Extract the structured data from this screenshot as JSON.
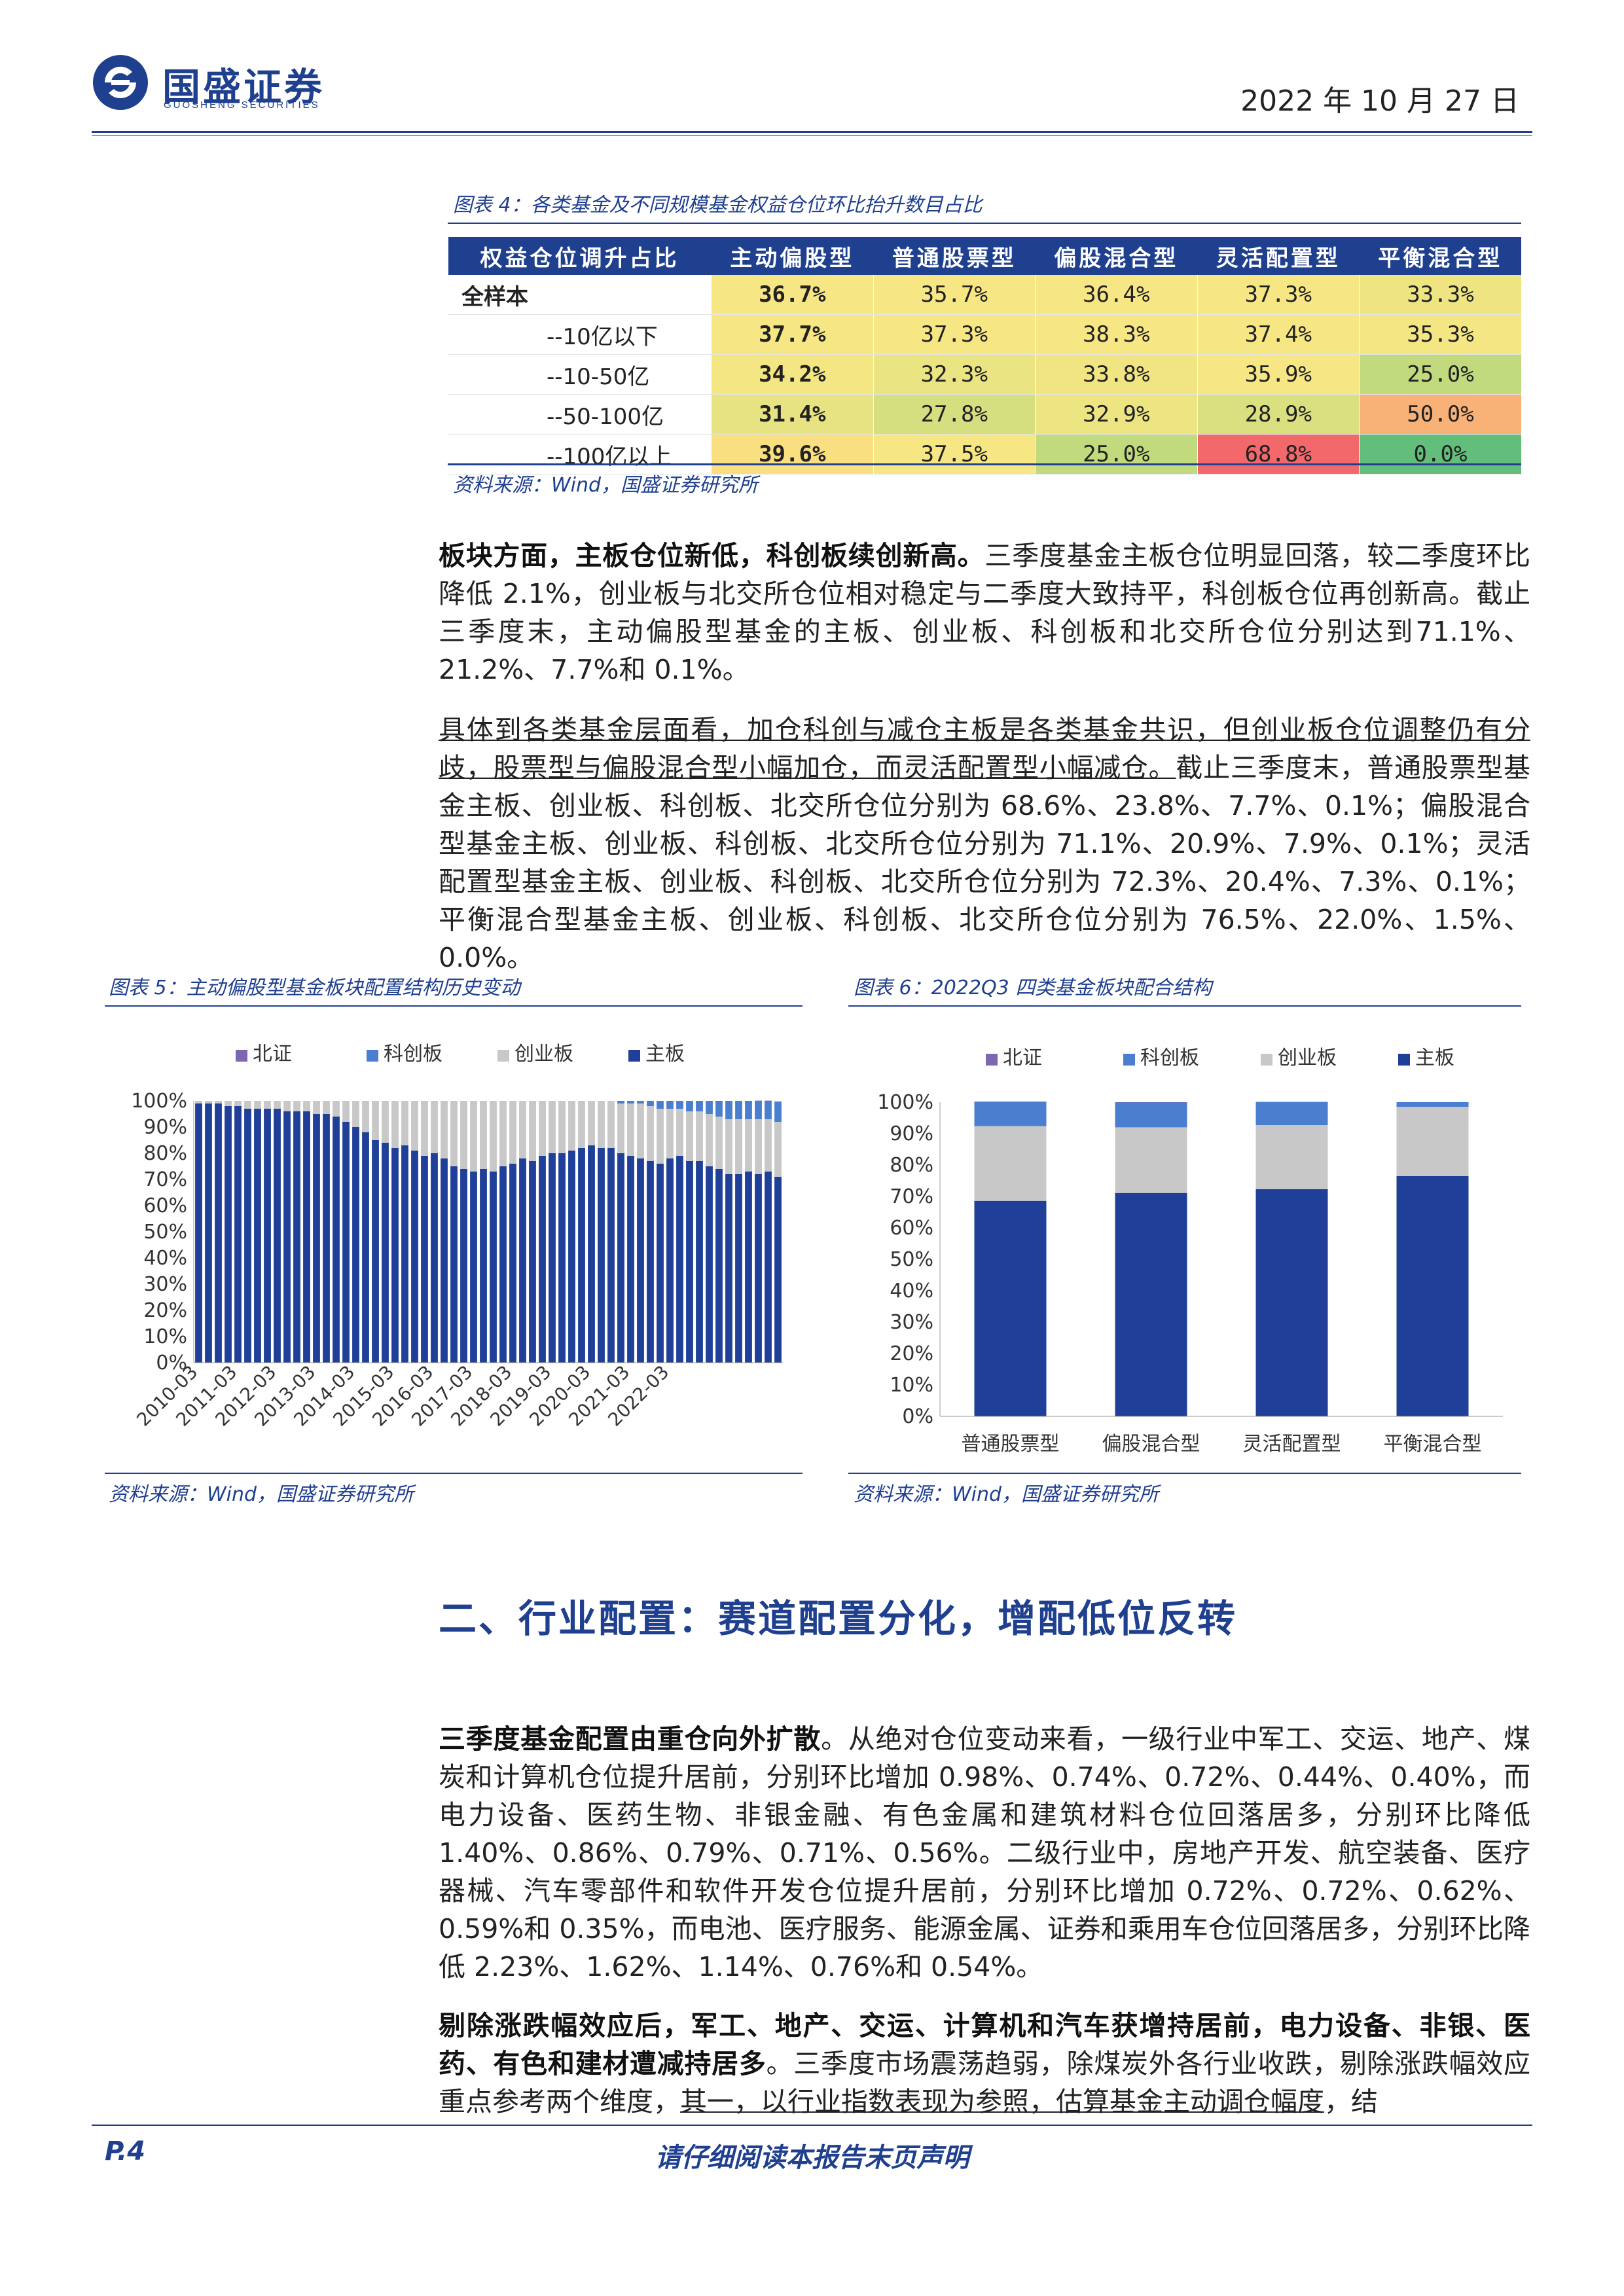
{
  "header": {
    "logo_cn": "国盛证券",
    "logo_en": "GUOSHENG SECURITIES",
    "date": "2022 年 10 月 27 日"
  },
  "table4": {
    "caption": "图表 4：各类基金及不同规模基金权益仓位环比抬升数目占比",
    "columns": [
      "权益仓位调升占比",
      "主动偏股型",
      "普通股票型",
      "偏股混合型",
      "灵活配置型",
      "平衡混合型"
    ],
    "rows": [
      {
        "label": "全样本",
        "cells": [
          "36.7%",
          "35.7%",
          "36.4%",
          "37.3%",
          "33.3%"
        ],
        "colors": [
          "#f7e784",
          "#f7e784",
          "#f7e784",
          "#f7e784",
          "#eee582"
        ]
      },
      {
        "label": "--10亿以下",
        "cells": [
          "37.7%",
          "37.3%",
          "38.3%",
          "37.4%",
          "35.3%"
        ],
        "colors": [
          "#f7e784",
          "#f7e784",
          "#f7e784",
          "#f7e784",
          "#f3e683"
        ]
      },
      {
        "label": "--10-50亿",
        "cells": [
          "34.2%",
          "32.3%",
          "33.8%",
          "35.9%",
          "25.0%"
        ],
        "colors": [
          "#f4e683",
          "#ebe482",
          "#f0e582",
          "#f7e784",
          "#c2da7e"
        ]
      },
      {
        "label": "--50-100亿",
        "cells": [
          "31.4%",
          "27.8%",
          "32.9%",
          "28.9%",
          "50.0%"
        ],
        "colors": [
          "#e8e382",
          "#d5df80",
          "#ede482",
          "#dae080",
          "#f8b176"
        ]
      },
      {
        "label": "--100亿以上",
        "cells": [
          "39.6%",
          "37.5%",
          "25.0%",
          "68.8%",
          "0.0%"
        ],
        "colors": [
          "#f9df80",
          "#f7e784",
          "#c2da7e",
          "#f3696b",
          "#63be7b"
        ]
      }
    ],
    "source": "资料来源：Wind，国盛证券研究所"
  },
  "para1": {
    "bold": "板块方面，主板仓位新低，科创板续创新高。",
    "text": "三季度基金主板仓位明显回落，较二季度环比降低 2.1%，创业板与北交所仓位相对稳定与二季度大致持平，科创板仓位再创新高。截止三季度末，主动偏股型基金的主板、创业板、科创板和北交所仓位分别达到71.1%、21.2%、7.7%和 0.1%。"
  },
  "para2": {
    "underlined": "具体到各类基金层面看，加仓科创与减仓主板是各类基金共识，但创业板仓位调整仍有分歧，股票型与偏股混合型小幅加仓，而灵活配置型小幅减仓。",
    "text": "截止三季度末，普通股票型基金主板、创业板、科创板、北交所仓位分别为 68.6%、23.8%、7.7%、0.1%；偏股混合型基金主板、创业板、科创板、北交所仓位分别为 71.1%、20.9%、7.9%、0.1%；灵活配置型基金主板、创业板、科创板、北交所仓位分别为 72.3%、20.4%、7.3%、0.1%；平衡混合型基金主板、创业板、科创板、北交所仓位分别为 76.5%、22.0%、1.5%、0.0%。"
  },
  "fig5": {
    "caption": "图表 5：主动偏股型基金板块配置结构历史变动",
    "source": "资料来源：Wind，国盛证券研究所"
  },
  "fig6": {
    "caption": "图表 6：2022Q3 四类基金板块配合结构",
    "source": "资料来源：Wind，国盛证券研究所"
  },
  "chart_data": [
    {
      "type": "bar",
      "stacked": true,
      "legend": [
        "北证",
        "科创板",
        "创业板",
        "主板"
      ],
      "legend_position": "top",
      "colors": {
        "北证": "#7b68b0",
        "科创板": "#4a7fd0",
        "创业板": "#c8c8c8",
        "主板": "#1f3f99"
      },
      "ylim": [
        0,
        100
      ],
      "yticks": [
        "0%",
        "10%",
        "20%",
        "30%",
        "40%",
        "50%",
        "60%",
        "70%",
        "80%",
        "90%",
        "100%"
      ],
      "xtick_labels": [
        "2010-03",
        "2011-03",
        "2012-03",
        "2013-03",
        "2014-03",
        "2015-03",
        "2016-03",
        "2017-03",
        "2018-03",
        "2019-03",
        "2020-03",
        "2021-03",
        "2022-03"
      ],
      "x_quarters_start": "2010-03",
      "series": [
        {
          "name": "主板",
          "values": [
            99,
            99,
            99,
            98,
            98,
            97,
            97,
            97,
            97,
            96,
            96,
            96,
            95,
            95,
            94,
            92,
            90,
            88,
            85,
            84,
            82,
            83,
            81,
            79,
            80,
            78,
            75,
            74,
            73,
            74,
            73,
            75,
            76,
            78,
            77,
            79,
            80,
            80,
            81,
            82,
            83,
            82,
            82,
            80,
            79,
            78,
            77,
            76,
            78,
            79,
            77,
            77,
            75,
            74,
            72,
            72,
            73,
            72,
            73,
            71
          ]
        },
        {
          "name": "创业板",
          "values": [
            1,
            1,
            1,
            2,
            2,
            3,
            3,
            3,
            3,
            4,
            4,
            4,
            5,
            5,
            6,
            8,
            10,
            12,
            15,
            16,
            18,
            17,
            19,
            21,
            20,
            22,
            25,
            26,
            27,
            26,
            27,
            25,
            24,
            22,
            23,
            21,
            20,
            20,
            19,
            18,
            17,
            18,
            18,
            19,
            20,
            21,
            21,
            21,
            19,
            18,
            19,
            19,
            20,
            20,
            21,
            21,
            20,
            21,
            20,
            21
          ]
        },
        {
          "name": "科创板",
          "values": [
            0,
            0,
            0,
            0,
            0,
            0,
            0,
            0,
            0,
            0,
            0,
            0,
            0,
            0,
            0,
            0,
            0,
            0,
            0,
            0,
            0,
            0,
            0,
            0,
            0,
            0,
            0,
            0,
            0,
            0,
            0,
            0,
            0,
            0,
            0,
            0,
            0,
            0,
            0,
            0,
            0,
            0,
            0,
            1,
            1,
            1,
            2,
            3,
            3,
            3,
            4,
            4,
            5,
            6,
            7,
            7,
            7,
            7,
            7,
            7.7
          ]
        },
        {
          "name": "北证",
          "values": [
            0,
            0,
            0,
            0,
            0,
            0,
            0,
            0,
            0,
            0,
            0,
            0,
            0,
            0,
            0,
            0,
            0,
            0,
            0,
            0,
            0,
            0,
            0,
            0,
            0,
            0,
            0,
            0,
            0,
            0,
            0,
            0,
            0,
            0,
            0,
            0,
            0,
            0,
            0,
            0,
            0,
            0,
            0,
            0,
            0,
            0,
            0,
            0,
            0,
            0,
            0,
            0,
            0,
            0,
            0,
            0,
            0,
            0.1,
            0.1,
            0.1
          ]
        }
      ]
    },
    {
      "type": "bar",
      "stacked": true,
      "legend": [
        "北证",
        "科创板",
        "创业板",
        "主板"
      ],
      "legend_position": "top",
      "colors": {
        "北证": "#7b68b0",
        "科创板": "#4a7fd0",
        "创业板": "#c8c8c8",
        "主板": "#1f3f99"
      },
      "ylim": [
        0,
        100
      ],
      "yticks": [
        "0%",
        "10%",
        "20%",
        "30%",
        "40%",
        "50%",
        "60%",
        "70%",
        "80%",
        "90%",
        "100%"
      ],
      "categories": [
        "普通股票型",
        "偏股混合型",
        "灵活配置型",
        "平衡混合型"
      ],
      "series": [
        {
          "name": "主板",
          "values": [
            68.6,
            71.1,
            72.3,
            76.5
          ]
        },
        {
          "name": "创业板",
          "values": [
            23.8,
            20.9,
            20.4,
            22.0
          ]
        },
        {
          "name": "科创板",
          "values": [
            7.7,
            7.9,
            7.3,
            1.5
          ]
        },
        {
          "name": "北证",
          "values": [
            0.1,
            0.1,
            0.1,
            0.0
          ]
        }
      ]
    }
  ],
  "section2": {
    "heading": "二、行业配置：赛道配置分化，增配低位反转"
  },
  "para3": {
    "bold": "三季度基金配置由重仓向外扩散",
    "text": "。从绝对仓位变动来看，一级行业中军工、交运、地产、煤炭和计算机仓位提升居前，分别环比增加 0.98%、0.74%、0.72%、0.44%、0.40%，而电力设备、医药生物、非银金融、有色金属和建筑材料仓位回落居多，分别环比降低1.40%、0.86%、0.79%、0.71%、0.56%。二级行业中，房地产开发、航空装备、医疗器械、汽车零部件和软件开发仓位提升居前，分别环比增加 0.72%、0.72%、0.62%、0.59%和 0.35%，而电池、医疗服务、能源金属、证券和乘用车仓位回落居多，分别环比降低 2.23%、1.62%、1.14%、0.76%和 0.54%。"
  },
  "para4": {
    "bold": "剔除涨跌幅效应后，军工、地产、交运、计算机和汽车获增持居前，电力设备、非银、医药、有色和建材遭减持居多",
    "text1": "。三季度市场震荡趋弱，除煤炭外各行业收跌，剔除涨跌幅效应重点参考两个维度，",
    "underlined": "其一，以行业指数表现为参照，估算基金主动调仓幅度",
    "text2": "，结"
  },
  "footer": {
    "page": "P.4",
    "note": "请仔细阅读本报告末页声明"
  }
}
